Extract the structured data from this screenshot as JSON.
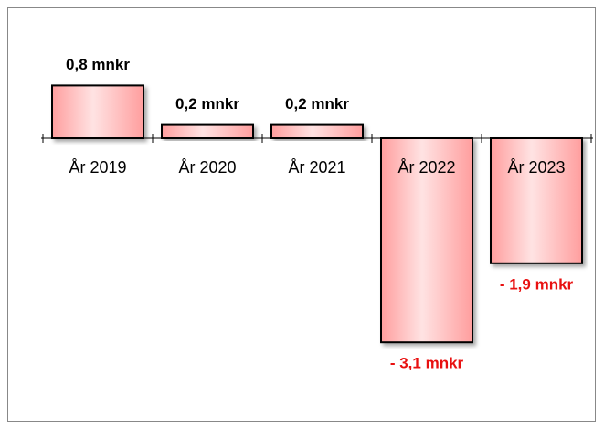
{
  "chart_data": {
    "type": "bar",
    "categories": [
      "År 2019",
      "År 2020",
      "År 2021",
      "År 2022",
      "År 2023"
    ],
    "values": [
      0.8,
      0.2,
      0.2,
      -3.1,
      -1.9
    ],
    "value_labels": [
      "0,8 mnkr",
      "0,2 mnkr",
      "0,2 mnkr",
      "- 3,1 mnkr",
      "- 1,9 mnkr"
    ],
    "color": "#ff9e9e",
    "positive_label_color": "#000000",
    "negative_label_color": "#e81010"
  }
}
